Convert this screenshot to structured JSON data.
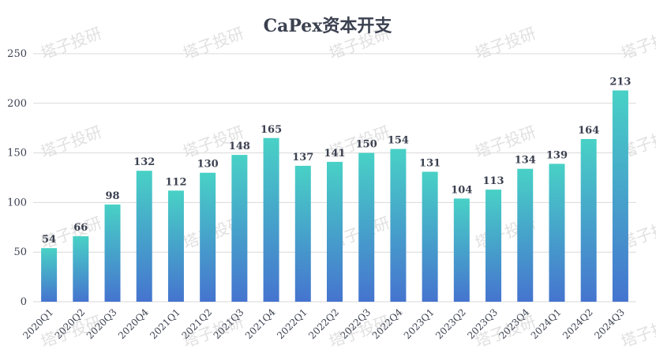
{
  "watermark": "塔子投研",
  "colors": {
    "bar_top": "#48d1c6",
    "bar_bottom": "#4574cf",
    "grid": "#d9d9d9",
    "text": "#3b4150"
  },
  "chart_data": {
    "type": "bar",
    "title": "CaPex资本开支",
    "xlabel": "",
    "ylabel": "",
    "ylim": [
      0,
      250
    ],
    "yticks": [
      0,
      50,
      100,
      150,
      200,
      250
    ],
    "grid": true,
    "legend": "none",
    "categories": [
      "2020Q1",
      "2020Q2",
      "2020Q3",
      "2020Q4",
      "2021Q1",
      "2021Q2",
      "2021Q3",
      "2021Q4",
      "2022Q1",
      "2022Q2",
      "2022Q3",
      "2022Q4",
      "2023Q1",
      "2023Q2",
      "2023Q3",
      "2023Q4",
      "2024Q1",
      "2024Q2",
      "2024Q3"
    ],
    "values": [
      54,
      66,
      98,
      132,
      112,
      130,
      148,
      165,
      137,
      141,
      150,
      154,
      131,
      104,
      113,
      134,
      139,
      164,
      213
    ]
  }
}
